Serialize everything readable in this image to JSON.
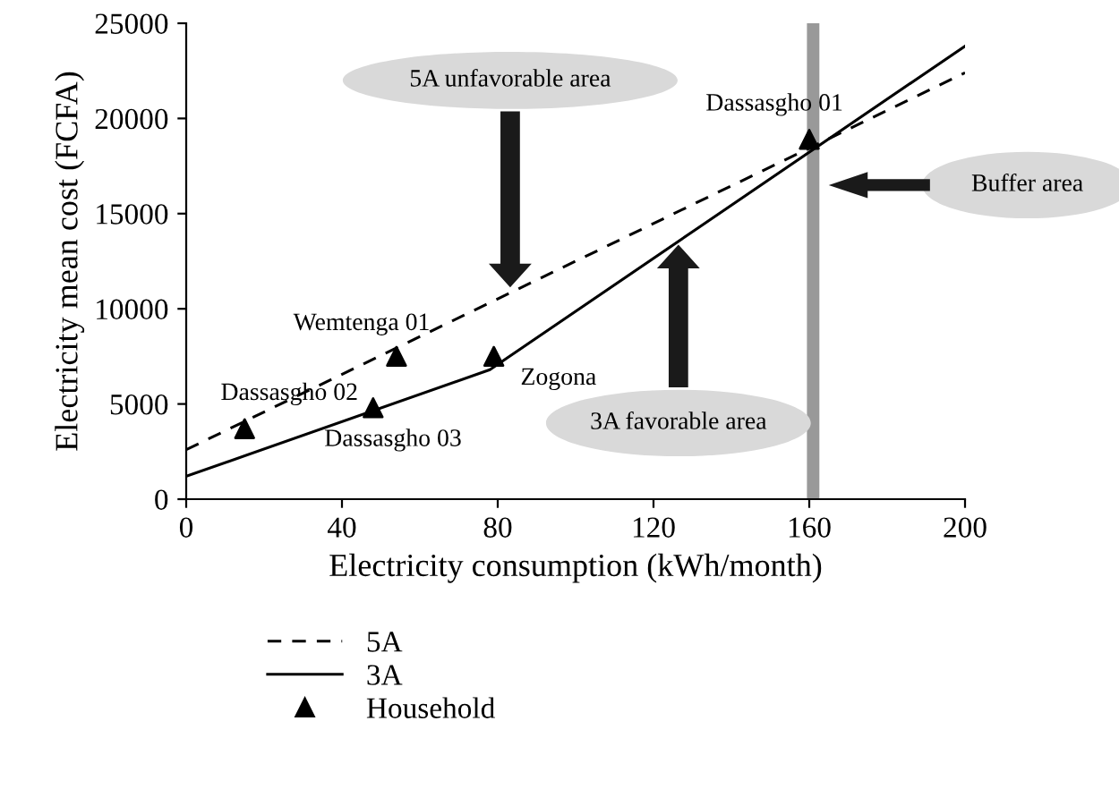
{
  "chart_data": {
    "type": "line",
    "xlabel": "Electricity consumption (kWh/month)",
    "ylabel": "Electricity mean cost (FCFA)",
    "xlim": [
      0,
      200
    ],
    "xticks": [
      0,
      40,
      80,
      120,
      160,
      200
    ],
    "ylim": [
      0,
      25000
    ],
    "yticks": [
      0,
      5000,
      10000,
      15000,
      20000,
      25000
    ],
    "grid": false,
    "legend": "bottom",
    "series": [
      {
        "name": "5A",
        "color": "#000000",
        "line_style": "dashed",
        "marker": "none",
        "x": [
          0,
          200
        ],
        "values": [
          2600,
          22400
        ]
      },
      {
        "name": "3A",
        "color": "#000000",
        "line_style": "solid",
        "marker": "none",
        "x": [
          0,
          78,
          200
        ],
        "values": [
          1200,
          6800,
          23800
        ]
      },
      {
        "name": "Household",
        "type": "scatter",
        "color": "#000000",
        "marker": "triangle",
        "x": [
          15,
          48,
          54,
          79,
          160
        ],
        "values": [
          3700,
          4800,
          7500,
          7500,
          18900
        ]
      }
    ],
    "ref_lines": [
      {
        "axis": "x",
        "value": 161,
        "color": "#999999"
      }
    ],
    "annotations": [
      {
        "text": "Dassasgho 02",
        "x": 15,
        "y": 3700
      },
      {
        "text": "Dassasgho 03",
        "x": 48,
        "y": 4800
      },
      {
        "text": "Wemtenga 01",
        "x": 54,
        "y": 7500
      },
      {
        "text": "Zogona",
        "x": 79,
        "y": 7500
      },
      {
        "text": "Dassasgho 01",
        "x": 160,
        "y": 18900
      },
      "5A unfavorable area",
      "3A favorable area",
      "Buffer area"
    ]
  }
}
